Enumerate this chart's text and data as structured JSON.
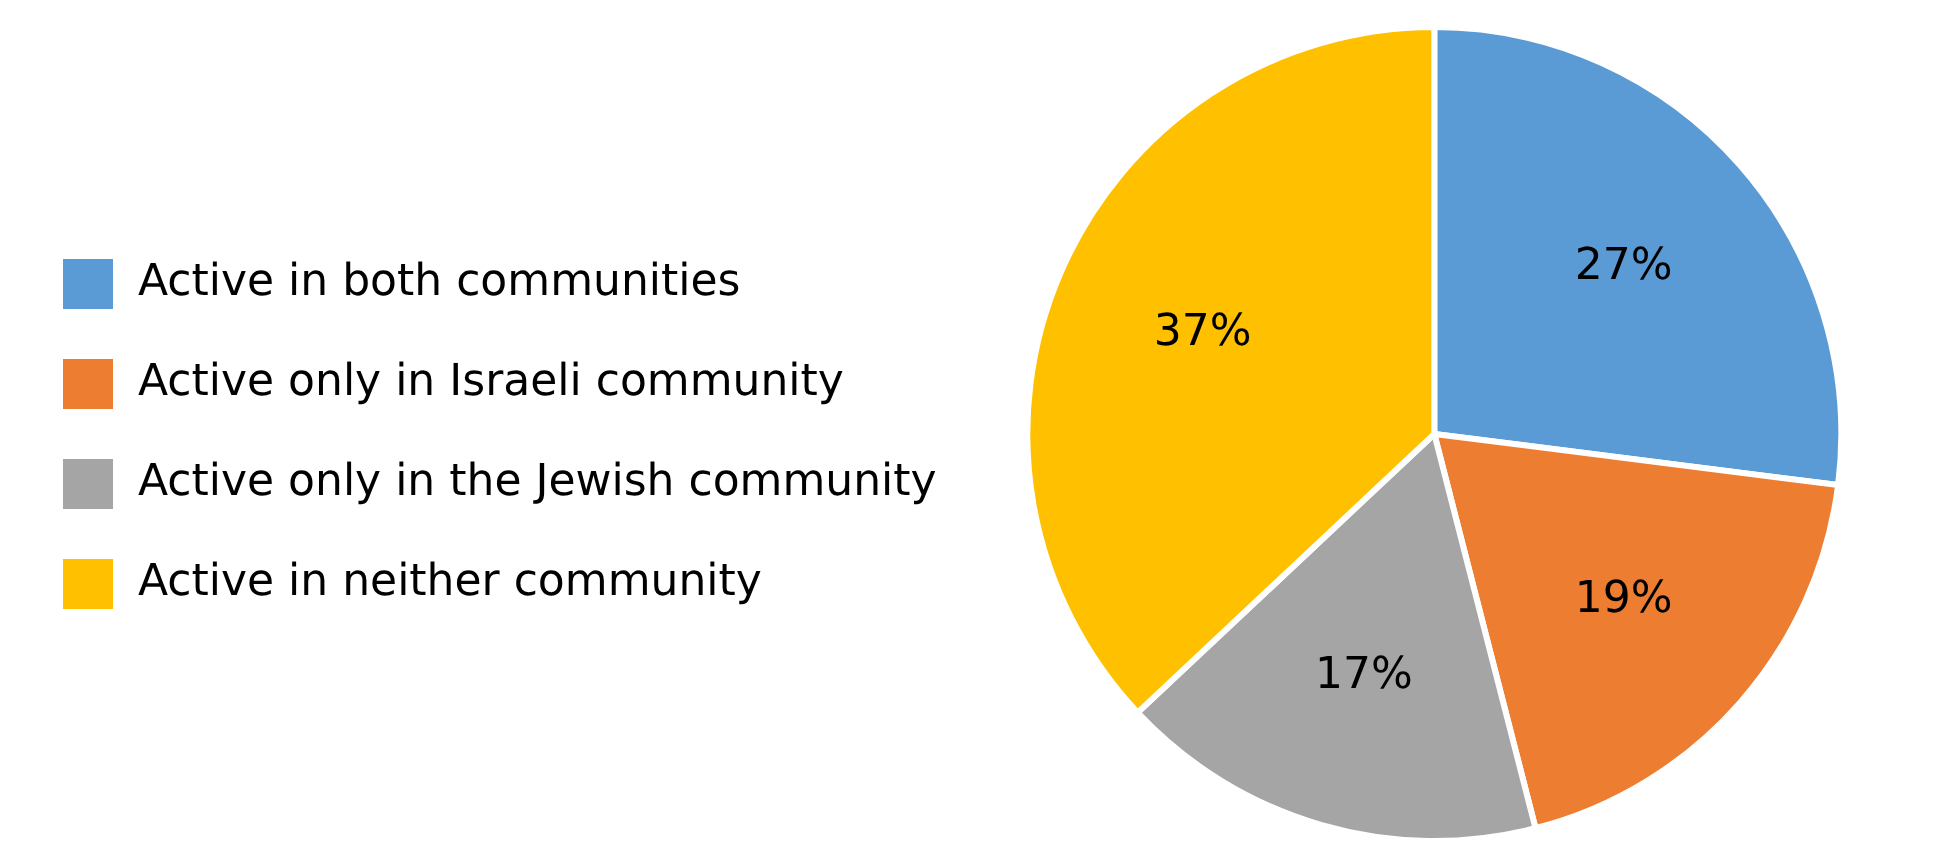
{
  "chart_data": {
    "type": "pie",
    "categories": [
      "Active in both communities",
      "Active only in Israeli community",
      "Active only in the Jewish community",
      "Active in neither community"
    ],
    "values": [
      27,
      19,
      17,
      37
    ],
    "colors": [
      "#5b9bd5",
      "#ed7d31",
      "#a5a5a5",
      "#ffc000"
    ],
    "value_labels": [
      "27%",
      "19%",
      "17%",
      "37%"
    ],
    "legend": "left"
  }
}
